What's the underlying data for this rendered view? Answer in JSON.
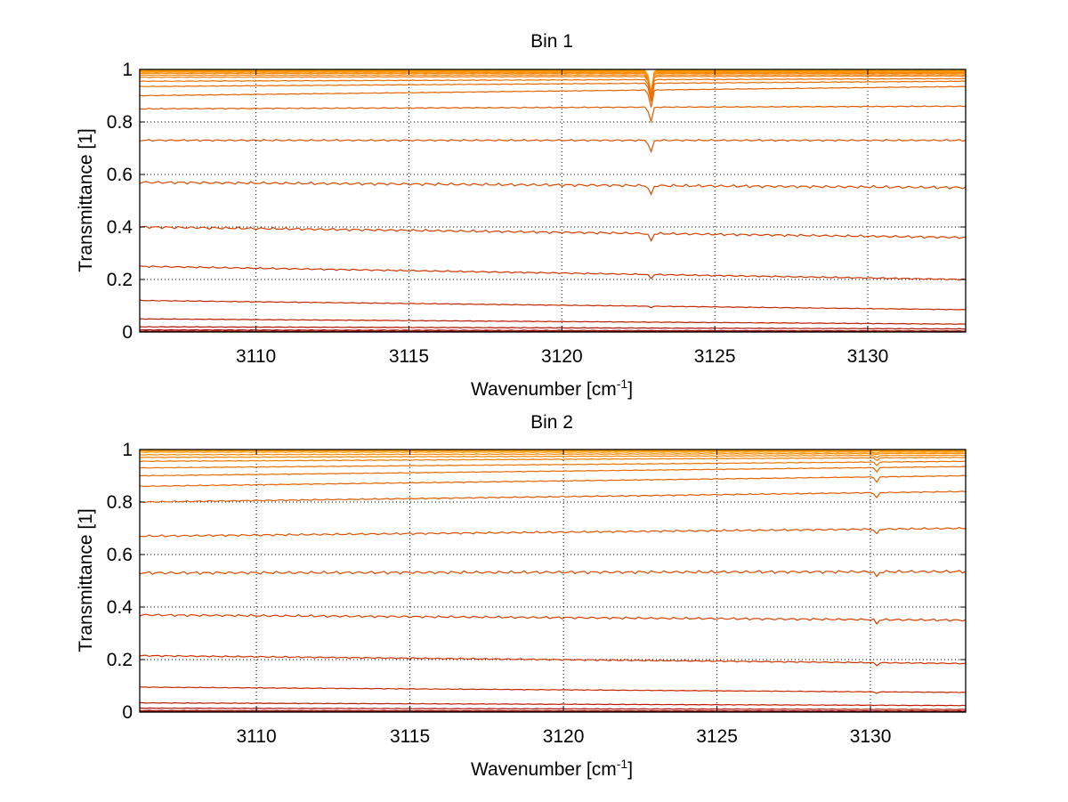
{
  "chart_data": [
    {
      "type": "line",
      "title": "Bin 1",
      "xlabel": "Wavenumber [cm",
      "xlabel_sup": "-1",
      "xlabel_end": "]",
      "ylabel": "Transmittance [1]",
      "xlim": [
        3106.2,
        3133.2
      ],
      "ylim": [
        0,
        1
      ],
      "xticks": [
        3110,
        3115,
        3120,
        3125,
        3130
      ],
      "yticks": [
        0,
        0.2,
        0.4,
        0.6,
        0.8,
        1
      ],
      "ytick_labels": [
        "0",
        "0.2",
        "0.4",
        "0.6",
        "0.8",
        "1"
      ],
      "grid": true,
      "dip_position": 3122.9,
      "series": [
        {
          "start": 0.998,
          "end": 0.996,
          "dip": 0.09,
          "color": "#ffa000"
        },
        {
          "start": 0.996,
          "end": 0.994,
          "dip": 0.09,
          "color": "#ff9a00"
        },
        {
          "start": 0.993,
          "end": 0.991,
          "dip": 0.09,
          "color": "#ff9400"
        },
        {
          "start": 0.99,
          "end": 0.988,
          "dip": 0.09,
          "color": "#ff8e00"
        },
        {
          "start": 0.985,
          "end": 0.985,
          "dip": 0.09,
          "color": "#f98600"
        },
        {
          "start": 0.978,
          "end": 0.98,
          "dip": 0.085,
          "color": "#f58000"
        },
        {
          "start": 0.97,
          "end": 0.975,
          "dip": 0.08,
          "color": "#f07800"
        },
        {
          "start": 0.955,
          "end": 0.965,
          "dip": 0.08,
          "color": "#ec7000"
        },
        {
          "start": 0.935,
          "end": 0.955,
          "dip": 0.075,
          "color": "#e86a00"
        },
        {
          "start": 0.9,
          "end": 0.935,
          "dip": 0.07,
          "color": "#e46200"
        },
        {
          "start": 0.85,
          "end": 0.86,
          "dip": 0.06,
          "color": "#e05a00"
        },
        {
          "start": 0.73,
          "end": 0.73,
          "dip": 0.05,
          "color": "#dd5200"
        },
        {
          "start": 0.57,
          "end": 0.55,
          "dip": 0.04,
          "color": "#d84a00"
        },
        {
          "start": 0.4,
          "end": 0.36,
          "dip": 0.03,
          "color": "#d44000"
        },
        {
          "start": 0.25,
          "end": 0.2,
          "dip": 0.015,
          "color": "#cd3400"
        },
        {
          "start": 0.12,
          "end": 0.085,
          "dip": 0.005,
          "color": "#c62800"
        },
        {
          "start": 0.05,
          "end": 0.03,
          "dip": 0.0,
          "color": "#bd1a00"
        },
        {
          "start": 0.02,
          "end": 0.012,
          "dip": 0.0,
          "color": "#b01000"
        },
        {
          "start": 0.008,
          "end": 0.004,
          "dip": 0.0,
          "color": "#a00800"
        },
        {
          "start": 0.003,
          "end": 0.001,
          "dip": 0.0,
          "color": "#900000"
        }
      ]
    },
    {
      "type": "line",
      "title": "Bin 2",
      "xlabel": "Wavenumber [cm",
      "xlabel_sup": "-1",
      "xlabel_end": "]",
      "ylabel": "Transmittance [1]",
      "xlim": [
        3106.2,
        3133.1
      ],
      "ylim": [
        0,
        1
      ],
      "xticks": [
        3110,
        3115,
        3120,
        3125,
        3130
      ],
      "yticks": [
        0,
        0.2,
        0.4,
        0.6,
        0.8,
        1
      ],
      "ytick_labels": [
        "0",
        "0.2",
        "0.4",
        "0.6",
        "0.8",
        "1"
      ],
      "grid": true,
      "dip_position": 3130.2,
      "series": [
        {
          "start": 0.999,
          "end": 0.997,
          "dip": 0.0,
          "color": "#ffa000"
        },
        {
          "start": 0.995,
          "end": 0.994,
          "dip": 0.0,
          "color": "#ff9a00"
        },
        {
          "start": 0.99,
          "end": 0.99,
          "dip": 0.005,
          "color": "#ff9400"
        },
        {
          "start": 0.98,
          "end": 0.985,
          "dip": 0.005,
          "color": "#fb8c00"
        },
        {
          "start": 0.97,
          "end": 0.978,
          "dip": 0.008,
          "color": "#f68400"
        },
        {
          "start": 0.955,
          "end": 0.97,
          "dip": 0.01,
          "color": "#f07a00"
        },
        {
          "start": 0.93,
          "end": 0.955,
          "dip": 0.012,
          "color": "#ec7200"
        },
        {
          "start": 0.9,
          "end": 0.935,
          "dip": 0.015,
          "color": "#e86a00"
        },
        {
          "start": 0.86,
          "end": 0.9,
          "dip": 0.02,
          "color": "#e46200"
        },
        {
          "start": 0.8,
          "end": 0.84,
          "dip": 0.02,
          "color": "#e05a00"
        },
        {
          "start": 0.67,
          "end": 0.7,
          "dip": 0.02,
          "color": "#dc5200"
        },
        {
          "start": 0.53,
          "end": 0.535,
          "dip": 0.02,
          "color": "#d84a00"
        },
        {
          "start": 0.37,
          "end": 0.35,
          "dip": 0.015,
          "color": "#d44000"
        },
        {
          "start": 0.215,
          "end": 0.185,
          "dip": 0.01,
          "color": "#cd3400"
        },
        {
          "start": 0.095,
          "end": 0.075,
          "dip": 0.005,
          "color": "#c62800"
        },
        {
          "start": 0.035,
          "end": 0.025,
          "dip": 0.0,
          "color": "#bd1a00"
        },
        {
          "start": 0.015,
          "end": 0.01,
          "dip": 0.0,
          "color": "#b01000"
        },
        {
          "start": 0.006,
          "end": 0.004,
          "dip": 0.0,
          "color": "#a00800"
        },
        {
          "start": 0.002,
          "end": 0.001,
          "dip": 0.0,
          "color": "#900000"
        }
      ]
    }
  ]
}
